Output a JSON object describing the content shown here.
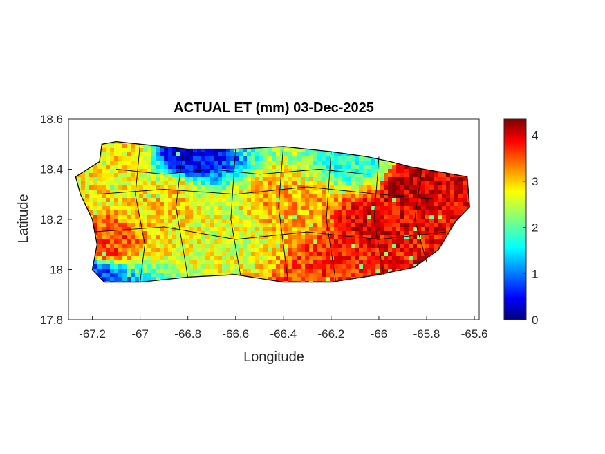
{
  "title": "ACTUAL ET (mm) 03-Dec-2025",
  "axes": {
    "xlabel": "Longitude",
    "ylabel": "Latitude",
    "xlim": [
      -67.3,
      -65.58
    ],
    "ylim": [
      17.8,
      18.6
    ],
    "xticks": [
      -67.2,
      -67,
      -66.8,
      -66.6,
      -66.4,
      -66.2,
      -66,
      -65.8,
      -65.6
    ],
    "xtick_labels": [
      "-67.2",
      "-67",
      "-66.8",
      "-66.6",
      "-66.4",
      "-66.2",
      "-66",
      "-65.8",
      "-65.6"
    ],
    "yticks": [
      18.6,
      18.4,
      18.2,
      18,
      17.8
    ],
    "ytick_labels": [
      "18.6",
      "18.4",
      "18.2",
      "18",
      "17.8"
    ]
  },
  "colorbar": {
    "colormap": "jet",
    "range": [
      0,
      4.35
    ],
    "ticks": [
      0,
      1,
      2,
      3,
      4
    ],
    "tick_labels": [
      "0",
      "1",
      "2",
      "3",
      "4"
    ]
  },
  "chart_data": {
    "type": "heatmap",
    "title": "ACTUAL ET (mm) 03-Dec-2025",
    "xlabel": "Longitude",
    "ylabel": "Latitude",
    "xlim": [
      -67.3,
      -65.58
    ],
    "ylim": [
      17.8,
      18.6
    ],
    "value_range": [
      0,
      4.35
    ],
    "region_outline_lonlat": [
      [
        -67.27,
        18.37
      ],
      [
        -67.22,
        18.4
      ],
      [
        -67.17,
        18.43
      ],
      [
        -67.16,
        18.5
      ],
      [
        -67.1,
        18.51
      ],
      [
        -67.0,
        18.5
      ],
      [
        -66.9,
        18.49
      ],
      [
        -66.8,
        18.48
      ],
      [
        -66.6,
        18.48
      ],
      [
        -66.4,
        18.49
      ],
      [
        -66.2,
        18.47
      ],
      [
        -66.05,
        18.45
      ],
      [
        -65.95,
        18.43
      ],
      [
        -65.87,
        18.41
      ],
      [
        -65.75,
        18.39
      ],
      [
        -65.63,
        18.37
      ],
      [
        -65.62,
        18.25
      ],
      [
        -65.68,
        18.19
      ],
      [
        -65.75,
        18.08
      ],
      [
        -65.85,
        18.01
      ],
      [
        -66.0,
        17.98
      ],
      [
        -66.2,
        17.95
      ],
      [
        -66.4,
        17.95
      ],
      [
        -66.6,
        17.98
      ],
      [
        -66.8,
        17.97
      ],
      [
        -67.0,
        17.95
      ],
      [
        -67.15,
        17.95
      ],
      [
        -67.2,
        18.0
      ],
      [
        -67.18,
        18.1
      ],
      [
        -67.2,
        18.2
      ],
      [
        -67.25,
        18.3
      ]
    ],
    "sample_values": [
      {
        "lon": -66.8,
        "lat": 18.47,
        "value": 0.5
      },
      {
        "lon": -67.1,
        "lat": 18.45,
        "value": 2.8
      },
      {
        "lon": -66.9,
        "lat": 18.3,
        "value": 2.9
      },
      {
        "lon": -66.6,
        "lat": 18.15,
        "value": 2.6
      },
      {
        "lon": -67.15,
        "lat": 18.1,
        "value": 3.5
      },
      {
        "lon": -67.18,
        "lat": 17.98,
        "value": 0.8
      },
      {
        "lon": -66.4,
        "lat": 18.25,
        "value": 3.1
      },
      {
        "lon": -66.0,
        "lat": 18.2,
        "value": 3.9
      },
      {
        "lon": -65.85,
        "lat": 18.35,
        "value": 4.0
      },
      {
        "lon": -65.75,
        "lat": 18.15,
        "value": 3.8
      },
      {
        "lon": -66.2,
        "lat": 18.0,
        "value": 3.6
      },
      {
        "lon": -66.1,
        "lat": 18.45,
        "value": 1.8
      }
    ]
  }
}
